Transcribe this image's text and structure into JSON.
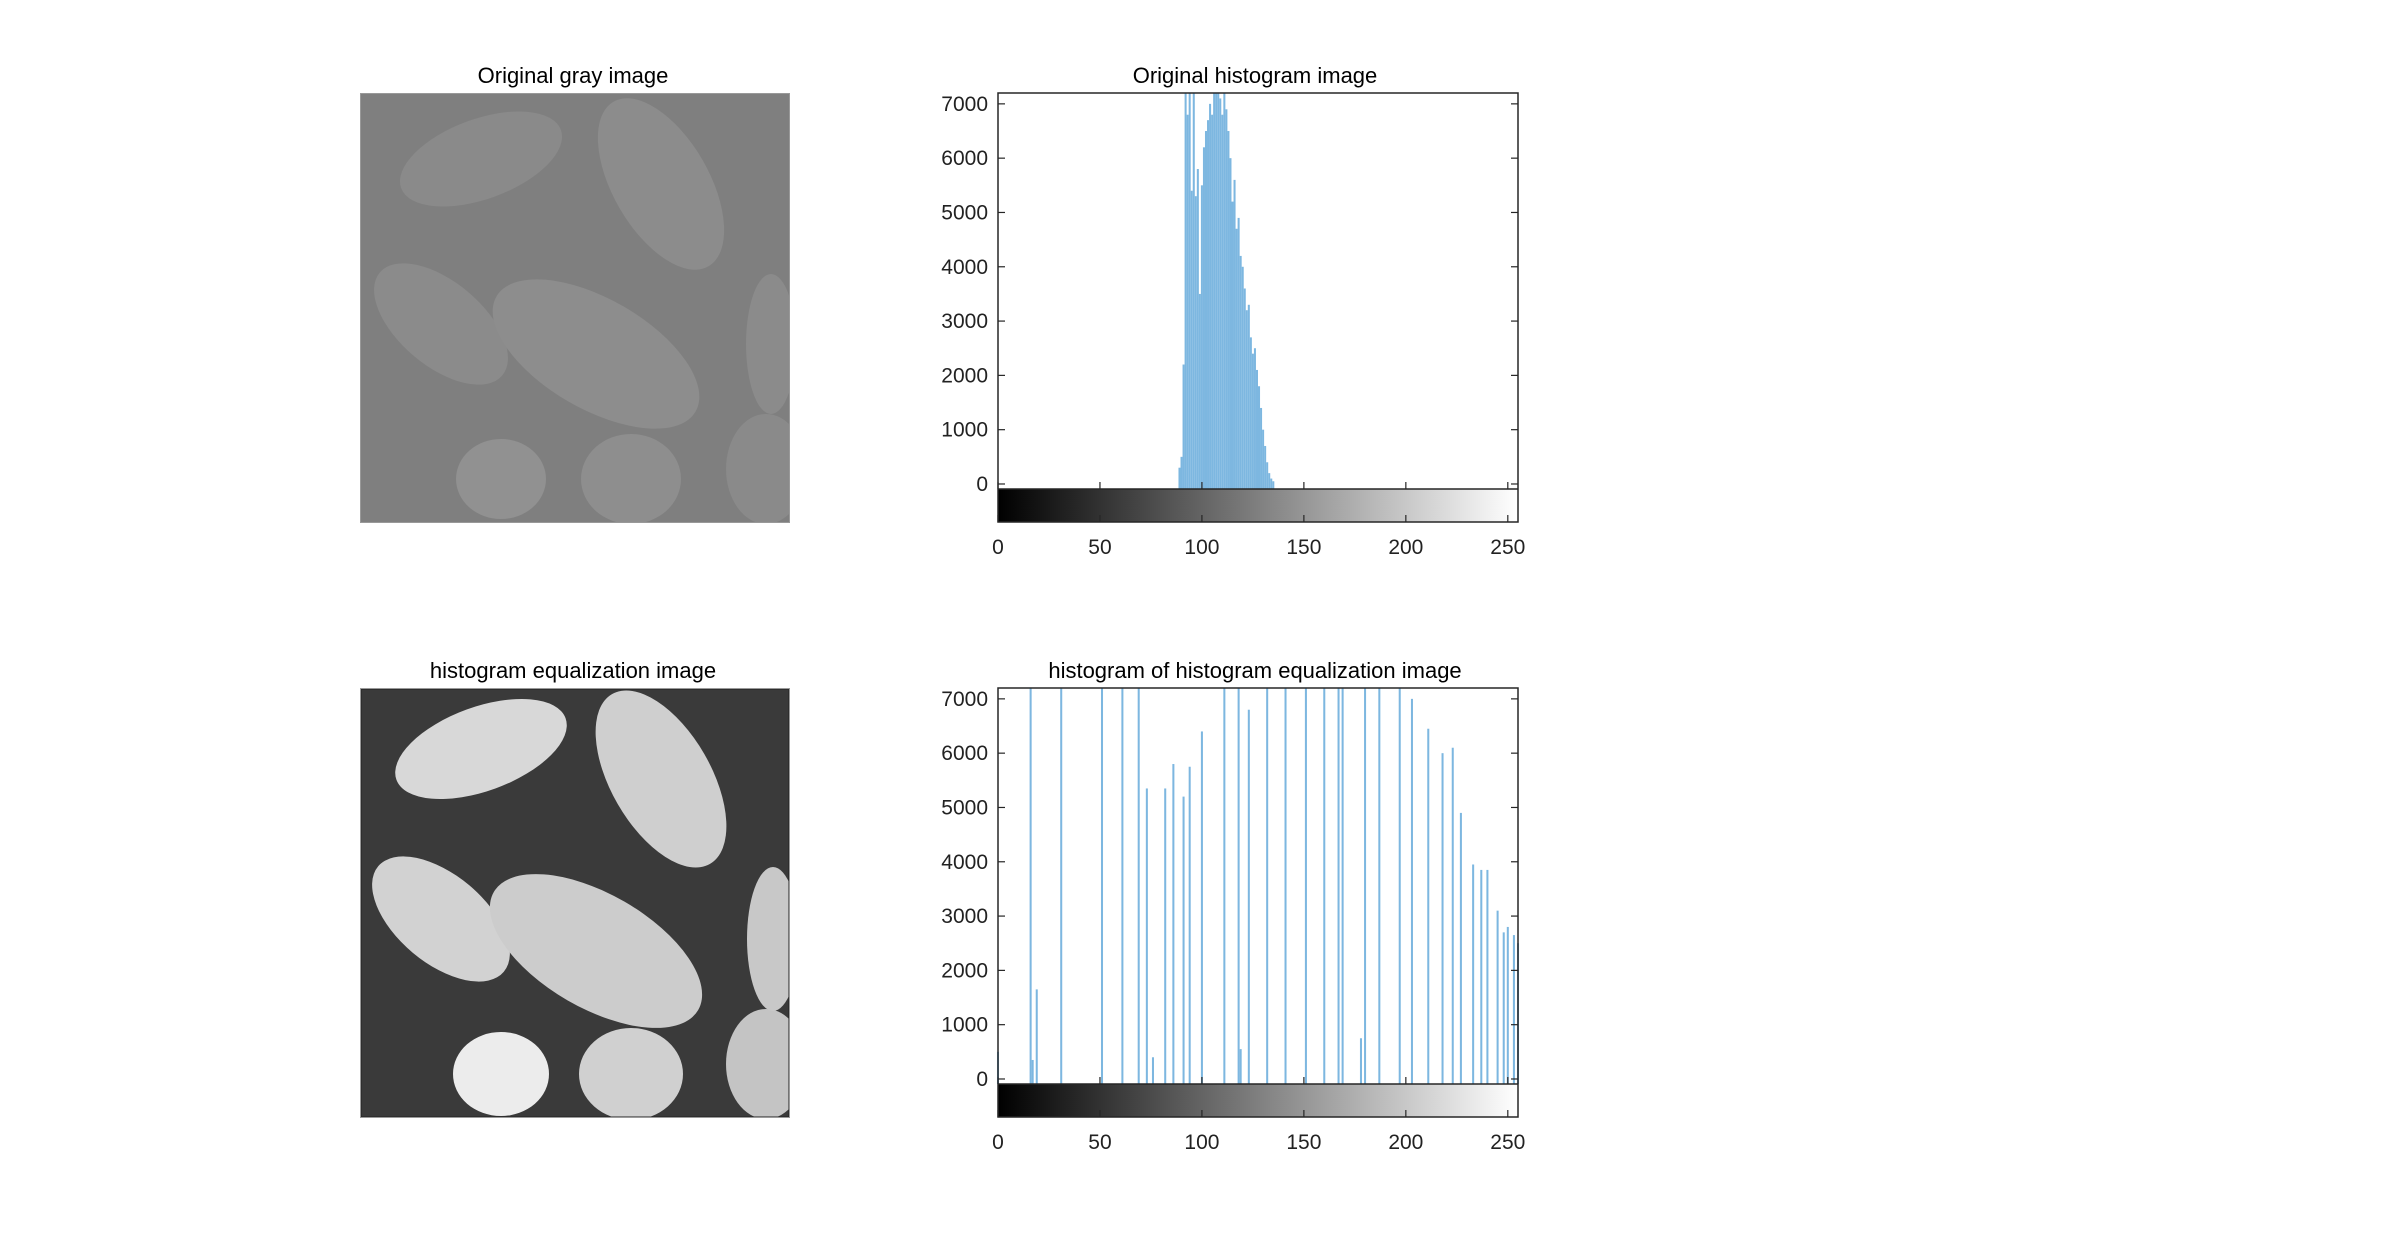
{
  "titles": {
    "orig_image": "Original gray image",
    "orig_hist": "Original histogram image",
    "eq_image": "histogram equalization image",
    "eq_hist": "histogram of histogram equalization image"
  },
  "colors": {
    "bar": "#7db7e0",
    "axis": "#262626",
    "orig_image_tone": "#808080",
    "eq_image_tone": "#bfbfbf"
  },
  "chart_data": [
    {
      "type": "bar",
      "title": "Original histogram image",
      "xlabel": "",
      "ylabel": "",
      "xlim": [
        0,
        255
      ],
      "ylim": [
        -700,
        7200
      ],
      "yticks": [
        0,
        1000,
        2000,
        3000,
        4000,
        5000,
        6000,
        7000
      ],
      "xticks": [
        0,
        50,
        100,
        150,
        200,
        250
      ],
      "colorbar": "grayscale 0-255",
      "x": [
        89,
        90,
        91,
        92,
        93,
        94,
        95,
        96,
        97,
        98,
        99,
        100,
        101,
        102,
        103,
        104,
        105,
        106,
        107,
        108,
        109,
        110,
        111,
        112,
        113,
        114,
        115,
        116,
        117,
        118,
        119,
        120,
        121,
        122,
        123,
        124,
        125,
        126,
        127,
        128,
        129,
        130,
        131,
        132,
        133,
        134,
        135
      ],
      "values": [
        300,
        500,
        2200,
        7200,
        6800,
        7200,
        5400,
        7200,
        5300,
        5800,
        3500,
        5500,
        6200,
        6500,
        6700,
        7000,
        6800,
        7200,
        7200,
        7200,
        7100,
        6800,
        7200,
        6900,
        6500,
        6000,
        5200,
        5600,
        4700,
        4900,
        4200,
        4000,
        3600,
        3200,
        3300,
        2700,
        2400,
        2500,
        2100,
        1800,
        1400,
        1000,
        700,
        400,
        200,
        100,
        50
      ]
    },
    {
      "type": "bar",
      "title": "histogram of histogram equalization image",
      "xlabel": "",
      "ylabel": "",
      "xlim": [
        0,
        255
      ],
      "ylim": [
        -700,
        7200
      ],
      "yticks": [
        0,
        1000,
        2000,
        3000,
        4000,
        5000,
        6000,
        7000
      ],
      "xticks": [
        0,
        50,
        100,
        150,
        200,
        250
      ],
      "colorbar": "grayscale 0-255",
      "x": [
        0,
        16,
        17,
        19,
        31,
        51,
        61,
        69,
        73,
        76,
        82,
        86,
        91,
        94,
        100,
        111,
        118,
        119,
        123,
        132,
        141,
        151,
        160,
        167,
        169,
        178,
        180,
        187,
        197,
        203,
        211,
        218,
        223,
        227,
        233,
        237,
        240,
        245,
        248,
        250,
        253,
        255
      ],
      "values": [
        500,
        7200,
        350,
        1650,
        7200,
        7200,
        7200,
        7200,
        5350,
        400,
        5350,
        5800,
        5200,
        5750,
        6400,
        7200,
        7200,
        550,
        6800,
        7200,
        7200,
        7200,
        7200,
        7200,
        7200,
        750,
        7200,
        7200,
        7200,
        7000,
        6450,
        6000,
        6100,
        4900,
        3950,
        3850,
        3850,
        3100,
        2700,
        2800,
        2650,
        2500
      ]
    }
  ]
}
